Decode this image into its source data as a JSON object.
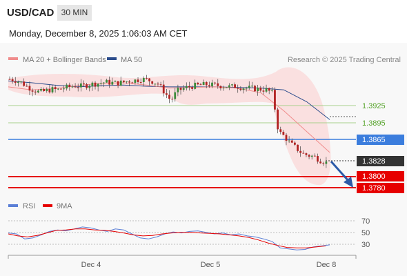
{
  "header": {
    "symbol": "USD/CAD",
    "timeframe": "30 MIN",
    "datetime": "Monday, December 8, 2025 1:06:03 AM CET"
  },
  "legend": {
    "ma20_bollinger": "MA 20 + Bollinger Bands",
    "ma50": "MA 50",
    "credit": "Research © 2025 Trading Central",
    "colors": {
      "ma20": "#f08c8c",
      "ma50": "#2b4c8c",
      "band": "#fadcdc"
    }
  },
  "levels": [
    {
      "value": "1.3925",
      "style": "green-text",
      "color": "#a8d08d"
    },
    {
      "value": "1.3895",
      "style": "green-text",
      "color": "#a8d08d"
    },
    {
      "value": "1.3865",
      "style": "blue-tag",
      "color": "#3b7ddd"
    },
    {
      "value": "1.3828",
      "style": "dark-tag",
      "color": "#333333"
    },
    {
      "value": "1.3800",
      "style": "red-tag",
      "color": "#e60000"
    },
    {
      "value": "1.3780",
      "style": "red-tag",
      "color": "#e60000"
    }
  ],
  "rsi_legend": {
    "rsi": "RSI",
    "ma": "9MA",
    "colors": {
      "rsi": "#5b7fd6",
      "ma": "#e60000"
    }
  },
  "chart_data": {
    "type": "candlestick",
    "symbol": "USD/CAD",
    "timeframe": "30 MIN",
    "ylim": [
      1.3765,
      1.3985
    ],
    "x_ticks": [
      "Dec 4",
      "Dec 5",
      "Dec 8"
    ],
    "price_path": [
      1.3968,
      1.3966,
      1.3962,
      1.3955,
      1.395,
      1.3946,
      1.3948,
      1.3951,
      1.395,
      1.3953,
      1.3955,
      1.3957,
      1.3956,
      1.3958,
      1.396,
      1.3961,
      1.3963,
      1.3962,
      1.3961,
      1.3963,
      1.3965,
      1.3966,
      1.3968,
      1.3967,
      1.3964,
      1.3959,
      1.3945,
      1.3932,
      1.3948,
      1.3952,
      1.3955,
      1.3957,
      1.3958,
      1.3959,
      1.3958,
      1.3957,
      1.3956,
      1.3955,
      1.3956,
      1.3954,
      1.3953,
      1.3952,
      1.3951,
      1.395,
      1.3945,
      1.388,
      1.3872,
      1.386,
      1.3852,
      1.3843,
      1.384,
      1.3838,
      1.3832,
      1.3828
    ],
    "ma20": [
      1.3955,
      1.395,
      1.3952,
      1.3957,
      1.3961,
      1.3962,
      1.3958,
      1.3953,
      1.3954,
      1.3955,
      1.3953,
      1.3945,
      1.3915,
      1.388,
      1.3845
    ],
    "ma50": [
      1.3965,
      1.3962,
      1.3958,
      1.3955,
      1.3957,
      1.3958,
      1.3956,
      1.3955,
      1.3955,
      1.3955,
      1.3954,
      1.3953,
      1.395,
      1.393,
      1.39
    ],
    "rsi": {
      "ticks": [
        "70",
        "50",
        "30"
      ],
      "ylim": [
        10,
        90
      ],
      "values": [
        52,
        50,
        40,
        42,
        48,
        55,
        58,
        56,
        60,
        64,
        62,
        58,
        55,
        60,
        58,
        50,
        42,
        40,
        44,
        50,
        54,
        52,
        55,
        56,
        53,
        50,
        52,
        48,
        50,
        46,
        44,
        40,
        35,
        22,
        20,
        18,
        19,
        24,
        26,
        28
      ],
      "ma9": [
        50,
        46,
        44,
        47,
        52,
        57,
        58,
        60,
        60,
        58,
        57,
        55,
        52,
        48,
        46,
        47,
        50,
        52,
        53,
        53,
        52,
        51,
        50,
        48,
        46,
        43,
        38,
        32,
        27,
        23,
        22,
        22,
        24,
        26
      ]
    }
  }
}
